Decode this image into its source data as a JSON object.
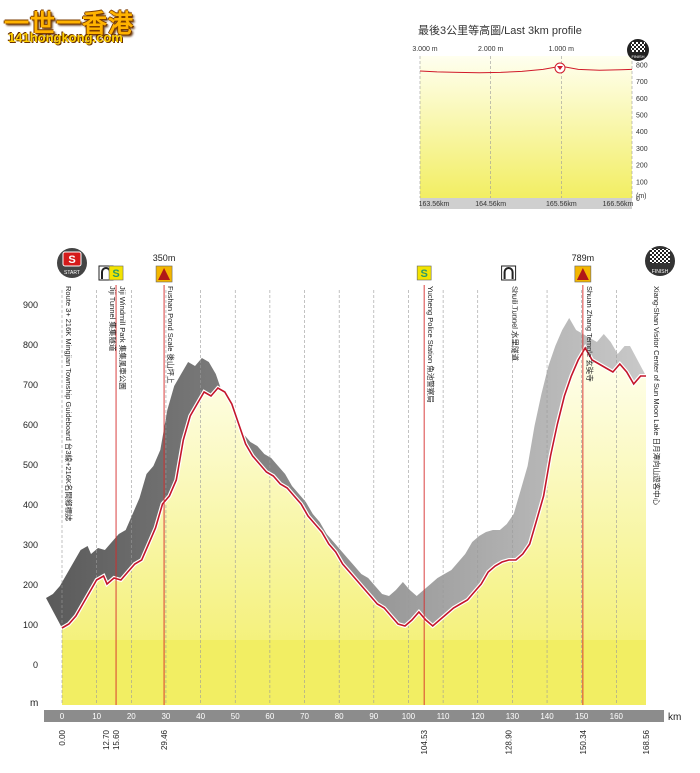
{
  "logo": {
    "main": "一世一香港",
    "sub": "141hongkong.com"
  },
  "inset": {
    "title": "最後3公里等高圖/Last 3km profile",
    "top_ticks": [
      "3.000 m",
      "2.000 m",
      "1.000 m"
    ],
    "bottom_ticks": [
      "163.56km",
      "164.56km",
      "165.56km",
      "166.56km"
    ],
    "y_ticks": [
      "800",
      "700",
      "600",
      "500",
      "400",
      "300",
      "200",
      "100",
      "0"
    ],
    "y_unit": "(m)",
    "finish_label": "FINISH"
  },
  "main": {
    "y_ticks": [
      "900",
      "800",
      "700",
      "600",
      "500",
      "400",
      "300",
      "200",
      "100",
      "0"
    ],
    "y_unit": "m",
    "x_ticks": [
      "0",
      "10",
      "20",
      "30",
      "40",
      "50",
      "60",
      "70",
      "80",
      "90",
      "100",
      "110",
      "120",
      "130",
      "140",
      "150",
      "160"
    ],
    "x_unit": "km",
    "start_label": "START",
    "finish_label": "FINISH",
    "start_letter": "S",
    "markers": [
      {
        "km": "0.00",
        "label": "Route 3+ 216K Mingjian Township Guideboard 台3線+216K名間鄉標誌",
        "icon": ""
      },
      {
        "km": "12.70",
        "label": "Jiji Tunnel 集集隧道",
        "icon": "tunnel"
      },
      {
        "km": "15.60",
        "label": "Jiji Windmill Park 集集風車公園",
        "icon": "sprint"
      },
      {
        "km": "29.46",
        "label": "Fushan Pond Scale 後山坪上",
        "icon": "climb",
        "alt": "350m"
      },
      {
        "km": "104.53",
        "label": "Yucheng Police Station 魚池警察局",
        "icon": "sprint"
      },
      {
        "km": "128.90",
        "label": "Shuili Tunnel 水里隧道",
        "icon": "tunnel"
      },
      {
        "km": "150.34",
        "label": "Shuan Zhang Temple 玄奘寺",
        "icon": "climb",
        "alt": "789m"
      },
      {
        "km": "168.56",
        "label": "Xiang-Shan Visitor Center of Sun Moon Lake 日月潭向山遊客中心",
        "icon": "finish"
      }
    ]
  },
  "chart_data": [
    {
      "type": "area",
      "title": "",
      "xlabel": "km",
      "ylabel": "m",
      "xlim": [
        0,
        168.56
      ],
      "ylim": [
        -50,
        950
      ],
      "x": [
        0,
        2,
        4,
        6,
        8,
        10,
        12,
        13,
        15,
        17,
        19,
        21,
        23,
        25,
        27,
        29,
        31,
        33,
        35,
        37,
        39,
        41,
        43,
        45,
        47,
        49,
        51,
        53,
        55,
        57,
        59,
        61,
        63,
        65,
        67,
        69,
        71,
        73,
        75,
        77,
        79,
        81,
        83,
        85,
        87,
        89,
        91,
        93,
        95,
        97,
        99,
        101,
        103,
        105,
        107,
        109,
        111,
        113,
        115,
        117,
        119,
        121,
        123,
        125,
        127,
        129,
        131,
        133,
        135,
        137,
        139,
        141,
        143,
        145,
        147,
        149,
        151,
        153,
        155,
        157,
        159,
        161,
        163,
        165,
        167,
        168.56
      ],
      "values": [
        90,
        100,
        120,
        150,
        180,
        210,
        220,
        200,
        215,
        210,
        230,
        250,
        260,
        300,
        340,
        400,
        420,
        460,
        560,
        620,
        650,
        680,
        670,
        690,
        680,
        650,
        600,
        550,
        520,
        500,
        480,
        470,
        450,
        440,
        420,
        400,
        370,
        350,
        330,
        300,
        280,
        250,
        230,
        210,
        190,
        170,
        150,
        140,
        120,
        100,
        95,
        110,
        130,
        110,
        95,
        110,
        125,
        140,
        150,
        160,
        180,
        200,
        230,
        245,
        255,
        260,
        260,
        275,
        300,
        360,
        420,
        520,
        600,
        670,
        720,
        760,
        790,
        760,
        750,
        740,
        730,
        750,
        730,
        700,
        720,
        720
      ]
    },
    {
      "type": "line",
      "title": "",
      "xlabel": "km",
      "ylabel": "m",
      "xlim": [
        163.56,
        166.56
      ],
      "ylim": [
        0,
        800
      ],
      "x": [
        163.56,
        163.8,
        164.1,
        164.4,
        164.7,
        165.0,
        165.3,
        165.5,
        165.56,
        165.8,
        166.1,
        166.4,
        166.56
      ],
      "values": [
        760,
        755,
        752,
        750,
        752,
        758,
        770,
        785,
        789,
        770,
        765,
        768,
        770
      ]
    }
  ]
}
